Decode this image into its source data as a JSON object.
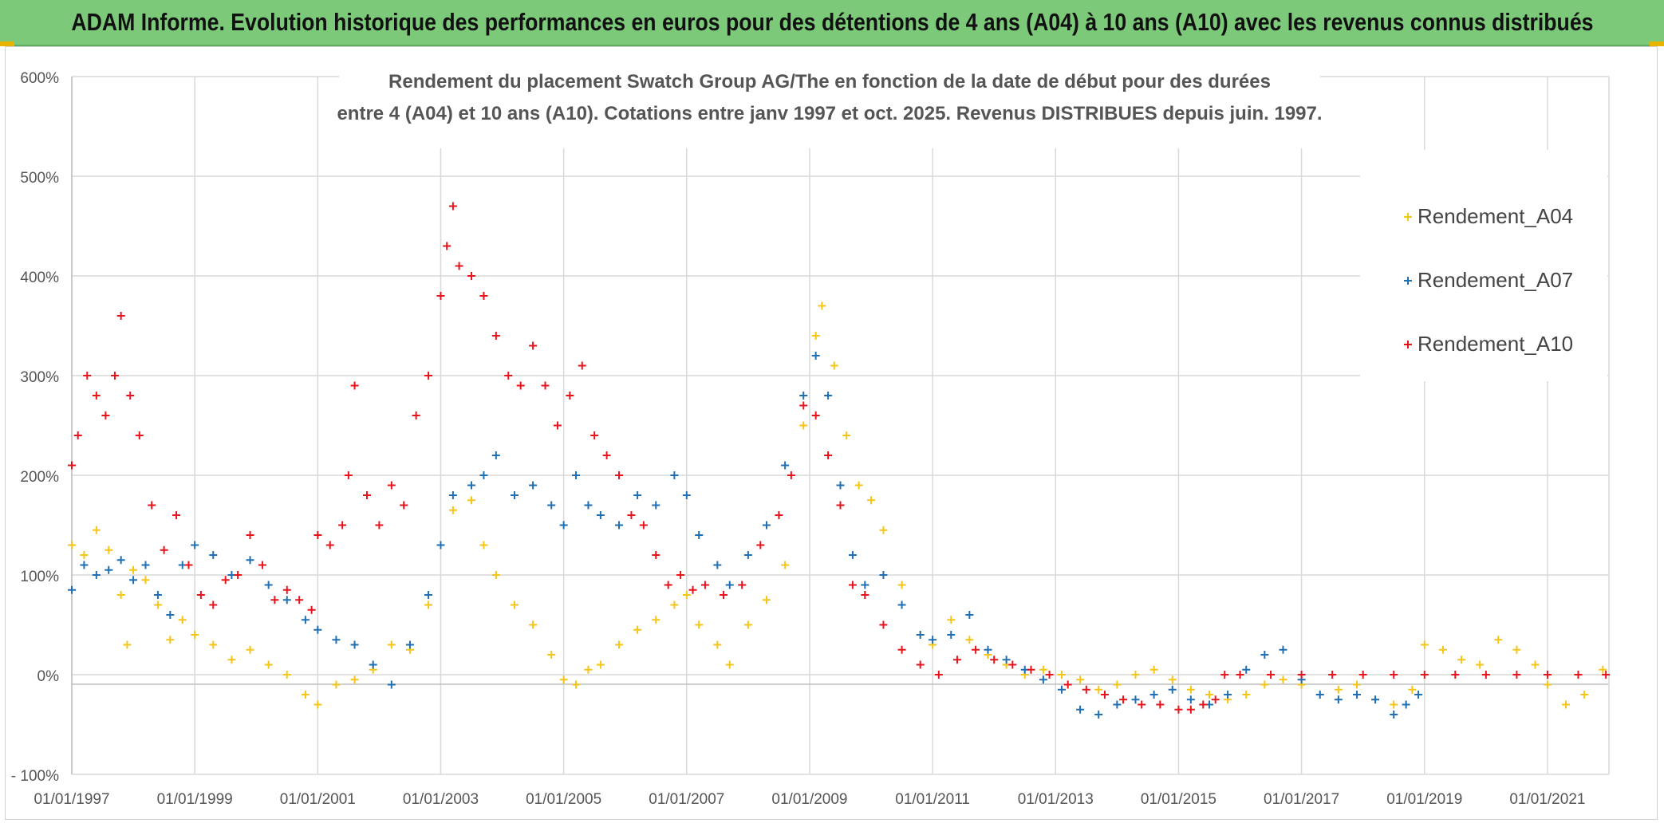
{
  "header": {
    "banner_title": "ADAM Informe. Evolution historique des performances en euros pour des détentions de 4 ans (A04) à 10 ans (A10) avec les revenus connus distribués"
  },
  "chart_data": {
    "type": "scatter",
    "title_line1": "Rendement du placement Swatch Group AG/The en fonction de la date de début pour des durées",
    "title_line2": "entre 4 (A04) et 10 ans (A10). Cotations entre janv 1997 et oct. 2025. Revenus DISTRIBUES depuis juin. 1997.",
    "xlabel": "",
    "ylabel": "",
    "ylim": [
      -100,
      600
    ],
    "xlim": [
      1997.0,
      2022.0
    ],
    "grid": true,
    "legend_position": "top-right",
    "y_ticks": [
      {
        "value": 600,
        "label": "600%"
      },
      {
        "value": 500,
        "label": "500%"
      },
      {
        "value": 400,
        "label": "400%"
      },
      {
        "value": 300,
        "label": "300%"
      },
      {
        "value": 200,
        "label": "200%"
      },
      {
        "value": 100,
        "label": "100%"
      },
      {
        "value": 0,
        "label": "0%"
      },
      {
        "value": -100,
        "label": "- 100%"
      }
    ],
    "x_ticks": [
      {
        "value": 1997,
        "label": "01/01/1997"
      },
      {
        "value": 1999,
        "label": "01/01/1999"
      },
      {
        "value": 2001,
        "label": "01/01/2001"
      },
      {
        "value": 2003,
        "label": "01/01/2003"
      },
      {
        "value": 2005,
        "label": "01/01/2005"
      },
      {
        "value": 2007,
        "label": "01/01/2007"
      },
      {
        "value": 2009,
        "label": "01/01/2009"
      },
      {
        "value": 2011,
        "label": "01/01/2011"
      },
      {
        "value": 2013,
        "label": "01/01/2013"
      },
      {
        "value": 2015,
        "label": "01/01/2015"
      },
      {
        "value": 2017,
        "label": "01/01/2017"
      },
      {
        "value": 2019,
        "label": "01/01/2019"
      },
      {
        "value": 2021,
        "label": "01/01/2021"
      }
    ],
    "series": [
      {
        "name": "Rendement_A04",
        "color": "#f5c518",
        "points": [
          [
            1997.0,
            130
          ],
          [
            1997.2,
            120
          ],
          [
            1997.4,
            145
          ],
          [
            1997.6,
            125
          ],
          [
            1997.8,
            80
          ],
          [
            1997.9,
            30
          ],
          [
            1998.0,
            105
          ],
          [
            1998.2,
            95
          ],
          [
            1998.4,
            70
          ],
          [
            1998.6,
            35
          ],
          [
            1998.8,
            55
          ],
          [
            1999.0,
            40
          ],
          [
            1999.3,
            30
          ],
          [
            1999.6,
            15
          ],
          [
            1999.9,
            25
          ],
          [
            2000.2,
            10
          ],
          [
            2000.5,
            0
          ],
          [
            2000.8,
            -20
          ],
          [
            2001.0,
            -30
          ],
          [
            2001.3,
            -10
          ],
          [
            2001.6,
            -5
          ],
          [
            2001.9,
            5
          ],
          [
            2002.2,
            30
          ],
          [
            2002.5,
            25
          ],
          [
            2002.8,
            70
          ],
          [
            2003.0,
            130
          ],
          [
            2003.2,
            165
          ],
          [
            2003.5,
            175
          ],
          [
            2003.7,
            130
          ],
          [
            2003.9,
            100
          ],
          [
            2004.2,
            70
          ],
          [
            2004.5,
            50
          ],
          [
            2004.8,
            20
          ],
          [
            2005.0,
            -5
          ],
          [
            2005.2,
            -10
          ],
          [
            2005.4,
            5
          ],
          [
            2005.6,
            10
          ],
          [
            2005.9,
            30
          ],
          [
            2006.2,
            45
          ],
          [
            2006.5,
            55
          ],
          [
            2006.8,
            70
          ],
          [
            2007.0,
            80
          ],
          [
            2007.2,
            50
          ],
          [
            2007.5,
            30
          ],
          [
            2007.7,
            10
          ],
          [
            2008.0,
            50
          ],
          [
            2008.3,
            75
          ],
          [
            2008.6,
            110
          ],
          [
            2008.9,
            250
          ],
          [
            2009.1,
            340
          ],
          [
            2009.2,
            370
          ],
          [
            2009.4,
            310
          ],
          [
            2009.6,
            240
          ],
          [
            2009.8,
            190
          ],
          [
            2010.0,
            175
          ],
          [
            2010.2,
            145
          ],
          [
            2010.5,
            90
          ],
          [
            2010.8,
            40
          ],
          [
            2011.0,
            30
          ],
          [
            2011.3,
            55
          ],
          [
            2011.6,
            35
          ],
          [
            2011.9,
            20
          ],
          [
            2012.2,
            10
          ],
          [
            2012.5,
            0
          ],
          [
            2012.8,
            5
          ],
          [
            2013.1,
            0
          ],
          [
            2013.4,
            -5
          ],
          [
            2013.7,
            -15
          ],
          [
            2014.0,
            -10
          ],
          [
            2014.3,
            0
          ],
          [
            2014.6,
            5
          ],
          [
            2014.9,
            -5
          ],
          [
            2015.2,
            -15
          ],
          [
            2015.5,
            -20
          ],
          [
            2015.8,
            -25
          ],
          [
            2016.1,
            -20
          ],
          [
            2016.4,
            -10
          ],
          [
            2016.7,
            -5
          ],
          [
            2017.0,
            -10
          ],
          [
            2017.3,
            -20
          ],
          [
            2017.6,
            -15
          ],
          [
            2017.9,
            -10
          ],
          [
            2018.2,
            -25
          ],
          [
            2018.5,
            -30
          ],
          [
            2018.8,
            -15
          ],
          [
            2019.0,
            30
          ],
          [
            2019.3,
            25
          ],
          [
            2019.6,
            15
          ],
          [
            2019.9,
            10
          ],
          [
            2020.2,
            35
          ],
          [
            2020.5,
            25
          ],
          [
            2020.8,
            10
          ],
          [
            2021.0,
            -10
          ],
          [
            2021.3,
            -30
          ],
          [
            2021.6,
            -20
          ],
          [
            2021.9,
            5
          ]
        ]
      },
      {
        "name": "Rendement_A07",
        "color": "#1f6fb5",
        "points": [
          [
            1997.0,
            85
          ],
          [
            1997.2,
            110
          ],
          [
            1997.4,
            100
          ],
          [
            1997.6,
            105
          ],
          [
            1997.8,
            115
          ],
          [
            1998.0,
            95
          ],
          [
            1998.2,
            110
          ],
          [
            1998.4,
            80
          ],
          [
            1998.6,
            60
          ],
          [
            1998.8,
            110
          ],
          [
            1999.0,
            130
          ],
          [
            1999.3,
            120
          ],
          [
            1999.6,
            100
          ],
          [
            1999.9,
            115
          ],
          [
            2000.2,
            90
          ],
          [
            2000.5,
            75
          ],
          [
            2000.8,
            55
          ],
          [
            2001.0,
            45
          ],
          [
            2001.3,
            35
          ],
          [
            2001.6,
            30
          ],
          [
            2001.9,
            10
          ],
          [
            2002.2,
            -10
          ],
          [
            2002.5,
            30
          ],
          [
            2002.8,
            80
          ],
          [
            2003.0,
            130
          ],
          [
            2003.2,
            180
          ],
          [
            2003.5,
            190
          ],
          [
            2003.7,
            200
          ],
          [
            2003.9,
            220
          ],
          [
            2004.2,
            180
          ],
          [
            2004.5,
            190
          ],
          [
            2004.8,
            170
          ],
          [
            2005.0,
            150
          ],
          [
            2005.2,
            200
          ],
          [
            2005.4,
            170
          ],
          [
            2005.6,
            160
          ],
          [
            2005.9,
            150
          ],
          [
            2006.2,
            180
          ],
          [
            2006.5,
            170
          ],
          [
            2006.8,
            200
          ],
          [
            2007.0,
            180
          ],
          [
            2007.2,
            140
          ],
          [
            2007.5,
            110
          ],
          [
            2007.7,
            90
          ],
          [
            2008.0,
            120
          ],
          [
            2008.3,
            150
          ],
          [
            2008.6,
            210
          ],
          [
            2008.9,
            280
          ],
          [
            2009.1,
            320
          ],
          [
            2009.3,
            280
          ],
          [
            2009.5,
            190
          ],
          [
            2009.7,
            120
          ],
          [
            2009.9,
            90
          ],
          [
            2010.2,
            100
          ],
          [
            2010.5,
            70
          ],
          [
            2010.8,
            40
          ],
          [
            2011.0,
            35
          ],
          [
            2011.3,
            40
          ],
          [
            2011.6,
            60
          ],
          [
            2011.9,
            25
          ],
          [
            2012.2,
            15
          ],
          [
            2012.5,
            5
          ],
          [
            2012.8,
            -5
          ],
          [
            2013.1,
            -15
          ],
          [
            2013.4,
            -35
          ],
          [
            2013.7,
            -40
          ],
          [
            2014.0,
            -30
          ],
          [
            2014.3,
            -25
          ],
          [
            2014.6,
            -20
          ],
          [
            2014.9,
            -15
          ],
          [
            2015.2,
            -25
          ],
          [
            2015.5,
            -30
          ],
          [
            2015.8,
            -20
          ],
          [
            2016.1,
            5
          ],
          [
            2016.4,
            20
          ],
          [
            2016.7,
            25
          ],
          [
            2017.0,
            -5
          ],
          [
            2017.3,
            -20
          ],
          [
            2017.6,
            -25
          ],
          [
            2017.9,
            -20
          ],
          [
            2018.2,
            -25
          ],
          [
            2018.5,
            -40
          ],
          [
            2018.7,
            -30
          ],
          [
            2018.9,
            -20
          ]
        ]
      },
      {
        "name": "Rendement_A10",
        "color": "#e8141c",
        "points": [
          [
            1997.0,
            210
          ],
          [
            1997.1,
            240
          ],
          [
            1997.25,
            300
          ],
          [
            1997.4,
            280
          ],
          [
            1997.55,
            260
          ],
          [
            1997.7,
            300
          ],
          [
            1997.8,
            360
          ],
          [
            1997.95,
            280
          ],
          [
            1998.1,
            240
          ],
          [
            1998.3,
            170
          ],
          [
            1998.5,
            125
          ],
          [
            1998.7,
            160
          ],
          [
            1998.9,
            110
          ],
          [
            1999.1,
            80
          ],
          [
            1999.3,
            70
          ],
          [
            1999.5,
            95
          ],
          [
            1999.7,
            100
          ],
          [
            1999.9,
            140
          ],
          [
            2000.1,
            110
          ],
          [
            2000.3,
            75
          ],
          [
            2000.5,
            85
          ],
          [
            2000.7,
            75
          ],
          [
            2000.9,
            65
          ],
          [
            2001.0,
            140
          ],
          [
            2001.2,
            130
          ],
          [
            2001.4,
            150
          ],
          [
            2001.5,
            200
          ],
          [
            2001.6,
            290
          ],
          [
            2001.8,
            180
          ],
          [
            2002.0,
            150
          ],
          [
            2002.2,
            190
          ],
          [
            2002.4,
            170
          ],
          [
            2002.6,
            260
          ],
          [
            2002.8,
            300
          ],
          [
            2003.0,
            380
          ],
          [
            2003.1,
            430
          ],
          [
            2003.2,
            470
          ],
          [
            2003.3,
            410
          ],
          [
            2003.5,
            400
          ],
          [
            2003.7,
            380
          ],
          [
            2003.9,
            340
          ],
          [
            2004.1,
            300
          ],
          [
            2004.3,
            290
          ],
          [
            2004.5,
            330
          ],
          [
            2004.7,
            290
          ],
          [
            2004.9,
            250
          ],
          [
            2005.1,
            280
          ],
          [
            2005.3,
            310
          ],
          [
            2005.5,
            240
          ],
          [
            2005.7,
            220
          ],
          [
            2005.9,
            200
          ],
          [
            2006.1,
            160
          ],
          [
            2006.3,
            150
          ],
          [
            2006.5,
            120
          ],
          [
            2006.7,
            90
          ],
          [
            2006.9,
            100
          ],
          [
            2007.1,
            85
          ],
          [
            2007.3,
            90
          ],
          [
            2007.6,
            80
          ],
          [
            2007.9,
            90
          ],
          [
            2008.2,
            130
          ],
          [
            2008.5,
            160
          ],
          [
            2008.7,
            200
          ],
          [
            2008.9,
            270
          ],
          [
            2009.1,
            260
          ],
          [
            2009.3,
            220
          ],
          [
            2009.5,
            170
          ],
          [
            2009.7,
            90
          ],
          [
            2009.9,
            80
          ],
          [
            2010.2,
            50
          ],
          [
            2010.5,
            25
          ],
          [
            2010.8,
            10
          ],
          [
            2011.1,
            0
          ],
          [
            2011.4,
            15
          ],
          [
            2011.7,
            25
          ],
          [
            2012.0,
            15
          ],
          [
            2012.3,
            10
          ],
          [
            2012.6,
            5
          ],
          [
            2012.9,
            0
          ],
          [
            2013.2,
            -10
          ],
          [
            2013.5,
            -15
          ],
          [
            2013.8,
            -20
          ],
          [
            2014.1,
            -25
          ],
          [
            2014.4,
            -30
          ],
          [
            2014.7,
            -30
          ],
          [
            2015.0,
            -35
          ],
          [
            2015.2,
            -35
          ],
          [
            2015.4,
            -30
          ],
          [
            2015.6,
            -25
          ],
          [
            2015.75,
            0
          ],
          [
            2016.0,
            0
          ],
          [
            2016.5,
            0
          ],
          [
            2017.0,
            0
          ],
          [
            2017.5,
            0
          ],
          [
            2018.0,
            0
          ],
          [
            2018.5,
            0
          ],
          [
            2019.0,
            0
          ],
          [
            2019.5,
            0
          ],
          [
            2020.0,
            0
          ],
          [
            2020.5,
            0
          ],
          [
            2021.0,
            0
          ],
          [
            2021.5,
            0
          ],
          [
            2021.95,
            0
          ]
        ]
      }
    ]
  }
}
